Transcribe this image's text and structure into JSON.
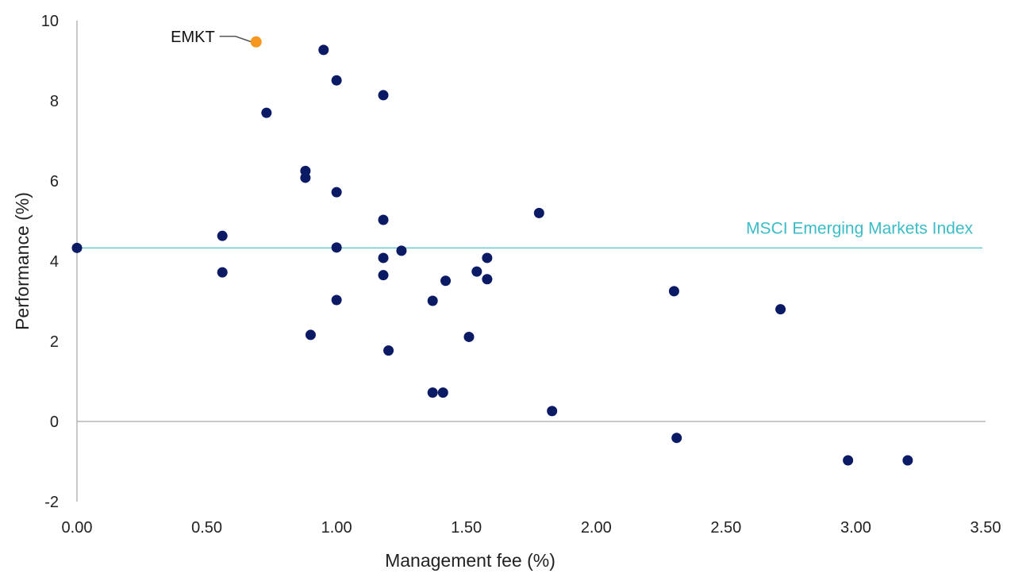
{
  "chart_data": {
    "type": "scatter",
    "title": "",
    "xlabel": "Management fee (%)",
    "ylabel": "Performance (%)",
    "xlim": [
      0,
      3.5
    ],
    "ylim": [
      -2,
      10
    ],
    "x_ticks": [
      "0.00",
      "0.50",
      "1.00",
      "1.50",
      "2.00",
      "2.50",
      "3.00",
      "3.50"
    ],
    "y_ticks": [
      "-2",
      "0",
      "2",
      "4",
      "6",
      "8",
      "10"
    ],
    "grid": false,
    "legend": "none",
    "colors": {
      "points": "#0a1a64",
      "highlight": "#f5961e",
      "reference_line": "#3bbcc6",
      "axis": "#b5b5b5"
    },
    "reference_line": {
      "label": "MSCI Emerging Markets Index",
      "y": 4.33
    },
    "highlight": {
      "label": "EMKT",
      "x": 0.69,
      "y": 9.47
    },
    "points": [
      {
        "x": 0.0,
        "y": 4.33
      },
      {
        "x": 0.56,
        "y": 4.63
      },
      {
        "x": 0.56,
        "y": 3.72
      },
      {
        "x": 0.73,
        "y": 7.7
      },
      {
        "x": 0.88,
        "y": 6.25
      },
      {
        "x": 0.88,
        "y": 6.08
      },
      {
        "x": 0.9,
        "y": 2.16
      },
      {
        "x": 0.95,
        "y": 9.27
      },
      {
        "x": 1.0,
        "y": 8.51
      },
      {
        "x": 1.0,
        "y": 5.72
      },
      {
        "x": 1.0,
        "y": 4.34
      },
      {
        "x": 1.0,
        "y": 3.03
      },
      {
        "x": 1.18,
        "y": 8.14
      },
      {
        "x": 1.18,
        "y": 5.03
      },
      {
        "x": 1.18,
        "y": 4.08
      },
      {
        "x": 1.18,
        "y": 3.65
      },
      {
        "x": 1.2,
        "y": 1.77
      },
      {
        "x": 1.25,
        "y": 4.26
      },
      {
        "x": 1.37,
        "y": 3.01
      },
      {
        "x": 1.37,
        "y": 0.72
      },
      {
        "x": 1.41,
        "y": 0.72
      },
      {
        "x": 1.42,
        "y": 3.51
      },
      {
        "x": 1.51,
        "y": 2.11
      },
      {
        "x": 1.54,
        "y": 3.74
      },
      {
        "x": 1.58,
        "y": 4.08
      },
      {
        "x": 1.58,
        "y": 3.55
      },
      {
        "x": 1.78,
        "y": 5.2
      },
      {
        "x": 1.83,
        "y": 0.26
      },
      {
        "x": 2.3,
        "y": 3.25
      },
      {
        "x": 2.31,
        "y": -0.41
      },
      {
        "x": 2.71,
        "y": 2.8
      },
      {
        "x": 2.97,
        "y": -0.97
      },
      {
        "x": 3.2,
        "y": -0.97
      }
    ]
  }
}
